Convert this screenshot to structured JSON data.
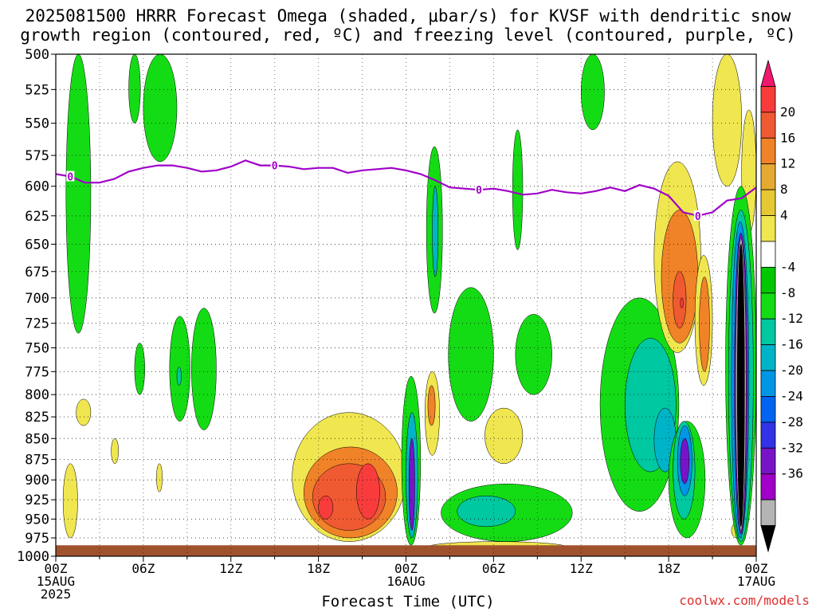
{
  "chart_data": {
    "type": "heatmap",
    "title_line1": "2025081500 HRRR Forecast Omega (shaded, μbar/s) for KVSF with dendritic snow",
    "title_line2": "growth region (contoured, red, ºC) and freezing level (contoured, purple, ºC)",
    "xlabel": "Forecast Time (UTC)",
    "x_ticks": [
      {
        "hour": 0,
        "label": "00Z",
        "sub1": "15AUG",
        "sub2": "2025"
      },
      {
        "hour": 6,
        "label": "06Z",
        "sub1": "",
        "sub2": ""
      },
      {
        "hour": 12,
        "label": "12Z",
        "sub1": "",
        "sub2": ""
      },
      {
        "hour": 18,
        "label": "18Z",
        "sub1": "",
        "sub2": ""
      },
      {
        "hour": 24,
        "label": "00Z",
        "sub1": "16AUG",
        "sub2": ""
      },
      {
        "hour": 30,
        "label": "06Z",
        "sub1": "",
        "sub2": ""
      },
      {
        "hour": 36,
        "label": "12Z",
        "sub1": "",
        "sub2": ""
      },
      {
        "hour": 42,
        "label": "18Z",
        "sub1": "",
        "sub2": ""
      },
      {
        "hour": 48,
        "label": "00Z",
        "sub1": "17AUG",
        "sub2": ""
      }
    ],
    "x_range_hours": [
      0,
      48
    ],
    "y_levels_hpa": [
      500,
      525,
      550,
      575,
      600,
      625,
      650,
      675,
      700,
      725,
      750,
      775,
      800,
      825,
      850,
      875,
      900,
      925,
      950,
      975,
      1000
    ],
    "y_scale": "log-pressure",
    "grid": "dotted",
    "colorbar": {
      "labels": [
        "20",
        "16",
        "12",
        "8",
        "4",
        "-4",
        "-8",
        "-12",
        "-16",
        "-20",
        "-24",
        "-28",
        "-32",
        "-36"
      ],
      "colors": [
        "#f0186c",
        "#f83c3c",
        "#f05a32",
        "#f08228",
        "#e6aa32",
        "#e6c832",
        "#f0e650",
        "#ffffff",
        "#00c800",
        "#14dc14",
        "#00c8a0",
        "#00b4c8",
        "#0096e6",
        "#0064f0",
        "#3232e6",
        "#7814c8",
        "#a000c8",
        "#b4b4b4",
        "#000000"
      ]
    },
    "freezing_level": {
      "label": "0",
      "color": "#a000c8",
      "points": [
        [
          0,
          590
        ],
        [
          1,
          592
        ],
        [
          2,
          597
        ],
        [
          3,
          597
        ],
        [
          4,
          594
        ],
        [
          5,
          588
        ],
        [
          6,
          585
        ],
        [
          7,
          583
        ],
        [
          8,
          583
        ],
        [
          9,
          585
        ],
        [
          10,
          588
        ],
        [
          11,
          587
        ],
        [
          12,
          584
        ],
        [
          13,
          579
        ],
        [
          14,
          583
        ],
        [
          15,
          583
        ],
        [
          16,
          584
        ],
        [
          17,
          586
        ],
        [
          18,
          585
        ],
        [
          19,
          585
        ],
        [
          20,
          589
        ],
        [
          21,
          587
        ],
        [
          22,
          586
        ],
        [
          23,
          585
        ],
        [
          24,
          587
        ],
        [
          25,
          590
        ],
        [
          26,
          595
        ],
        [
          27,
          601
        ],
        [
          28,
          602
        ],
        [
          29,
          603
        ],
        [
          30,
          602
        ],
        [
          31,
          604
        ],
        [
          32,
          607
        ],
        [
          33,
          606
        ],
        [
          34,
          603
        ],
        [
          35,
          605
        ],
        [
          36,
          606
        ],
        [
          37,
          604
        ],
        [
          38,
          601
        ],
        [
          39,
          604
        ],
        [
          40,
          599
        ],
        [
          41,
          602
        ],
        [
          42,
          608
        ],
        [
          43,
          622
        ],
        [
          44,
          625
        ],
        [
          45,
          622
        ],
        [
          46,
          612
        ],
        [
          47,
          610
        ],
        [
          48,
          601
        ]
      ],
      "label_hours": [
        1,
        15,
        29,
        44
      ]
    },
    "omega_regions": [
      {
        "value": -6,
        "hours": [
          0.7,
          2.4
        ],
        "p": [
          500,
          735
        ]
      },
      {
        "value": -6,
        "hours": [
          5.0,
          5.8
        ],
        "p": [
          500,
          550
        ]
      },
      {
        "value": -6,
        "hours": [
          6.0,
          8.3
        ],
        "p": [
          500,
          580
        ]
      },
      {
        "value": -6,
        "hours": [
          5.4,
          6.1
        ],
        "p": [
          745,
          800
        ]
      },
      {
        "value": -6,
        "hours": [
          7.8,
          9.2
        ],
        "p": [
          718,
          830
        ]
      },
      {
        "value": -10,
        "hours": [
          8.3,
          8.6
        ],
        "p": [
          770,
          790
        ]
      },
      {
        "value": -6,
        "hours": [
          9.3,
          11.0
        ],
        "p": [
          710,
          840
        ]
      },
      {
        "value": 6,
        "hours": [
          1.4,
          2.4
        ],
        "p": [
          805,
          835
        ]
      },
      {
        "value": 6,
        "hours": [
          3.8,
          4.3
        ],
        "p": [
          850,
          880
        ]
      },
      {
        "value": 6,
        "hours": [
          6.9,
          7.3
        ],
        "p": [
          880,
          915
        ]
      },
      {
        "value": 6,
        "hours": [
          0.5,
          1.5
        ],
        "p": [
          880,
          975
        ]
      },
      {
        "value": 6,
        "hours": [
          16.2,
          24.0
        ],
        "p": [
          820,
          980
        ]
      },
      {
        "value": 10,
        "hours": [
          17.0,
          23.4
        ],
        "p": [
          860,
          975
        ]
      },
      {
        "value": 14,
        "hours": [
          17.6,
          22.6
        ],
        "p": [
          880,
          965
        ]
      },
      {
        "value": 18,
        "hours": [
          18.0,
          19.0
        ],
        "p": [
          920,
          950
        ]
      },
      {
        "value": 18,
        "hours": [
          20.6,
          22.2
        ],
        "p": [
          880,
          950
        ]
      },
      {
        "value": -6,
        "hours": [
          23.7,
          25.0
        ],
        "p": [
          780,
          985
        ]
      },
      {
        "value": -14,
        "hours": [
          24.0,
          24.8
        ],
        "p": [
          820,
          975
        ]
      },
      {
        "value": -26,
        "hours": [
          24.2,
          24.6
        ],
        "p": [
          850,
          965
        ]
      },
      {
        "value": 6,
        "hours": [
          25.3,
          26.3
        ],
        "p": [
          775,
          870
        ]
      },
      {
        "value": 10,
        "hours": [
          25.5,
          26.0
        ],
        "p": [
          790,
          835
        ]
      },
      {
        "value": -6,
        "hours": [
          25.4,
          26.5
        ],
        "p": [
          568,
          715
        ]
      },
      {
        "value": -14,
        "hours": [
          25.8,
          26.2
        ],
        "p": [
          600,
          680
        ]
      },
      {
        "value": -6,
        "hours": [
          26.9,
          30.0
        ],
        "p": [
          690,
          830
        ]
      },
      {
        "value": -6,
        "hours": [
          26.4,
          35.4
        ],
        "p": [
          905,
          980
        ]
      },
      {
        "value": -10,
        "hours": [
          27.5,
          31.5
        ],
        "p": [
          920,
          960
        ]
      },
      {
        "value": 6,
        "hours": [
          29.4,
          32.0
        ],
        "p": [
          815,
          880
        ]
      },
      {
        "value": -6,
        "hours": [
          31.5,
          34.0
        ],
        "p": [
          716,
          800
        ]
      },
      {
        "value": -6,
        "hours": [
          31.3,
          32.0
        ],
        "p": [
          555,
          655
        ]
      },
      {
        "value": 6,
        "hours": [
          25.5,
          35.0
        ],
        "p": [
          980,
          995
        ]
      },
      {
        "value": -6,
        "hours": [
          36.0,
          37.6
        ],
        "p": [
          500,
          555
        ]
      },
      {
        "value": -6,
        "hours": [
          37.3,
          42.7
        ],
        "p": [
          700,
          940
        ]
      },
      {
        "value": -10,
        "hours": [
          39.0,
          42.5
        ],
        "p": [
          740,
          890
        ]
      },
      {
        "value": -14,
        "hours": [
          41.0,
          42.5
        ],
        "p": [
          815,
          890
        ]
      },
      {
        "value": -6,
        "hours": [
          42.0,
          44.5
        ],
        "p": [
          830,
          975
        ]
      },
      {
        "value": -10,
        "hours": [
          42.3,
          43.8
        ],
        "p": [
          830,
          950
        ]
      },
      {
        "value": -18,
        "hours": [
          42.6,
          43.6
        ],
        "p": [
          835,
          920
        ]
      },
      {
        "value": -26,
        "hours": [
          42.8,
          43.4
        ],
        "p": [
          850,
          905
        ]
      },
      {
        "value": 6,
        "hours": [
          41.0,
          44.2
        ],
        "p": [
          580,
          755
        ]
      },
      {
        "value": 10,
        "hours": [
          41.5,
          44.0
        ],
        "p": [
          620,
          745
        ]
      },
      {
        "value": 14,
        "hours": [
          42.3,
          43.2
        ],
        "p": [
          675,
          730
        ]
      },
      {
        "value": 18,
        "hours": [
          42.8,
          43.0
        ],
        "p": [
          700,
          710
        ]
      },
      {
        "value": 6,
        "hours": [
          43.8,
          45.0
        ],
        "p": [
          660,
          790
        ]
      },
      {
        "value": 10,
        "hours": [
          44.1,
          44.8
        ],
        "p": [
          680,
          775
        ]
      },
      {
        "value": 6,
        "hours": [
          45.0,
          47.0
        ],
        "p": [
          500,
          600
        ]
      },
      {
        "value": 6,
        "hours": [
          47.0,
          48.0
        ],
        "p": [
          540,
          640
        ]
      },
      {
        "value": 6,
        "hours": [
          46.3,
          47.0
        ],
        "p": [
          955,
          975
        ]
      },
      {
        "value": -6,
        "hours": [
          45.9,
          48.0
        ],
        "p": [
          600,
          985
        ]
      },
      {
        "value": -10,
        "hours": [
          46.1,
          47.8
        ],
        "p": [
          620,
          980
        ]
      },
      {
        "value": -18,
        "hours": [
          46.3,
          47.5
        ],
        "p": [
          630,
          975
        ]
      },
      {
        "value": -26,
        "hours": [
          46.5,
          47.4
        ],
        "p": [
          640,
          970
        ]
      },
      {
        "value": -34,
        "hours": [
          46.6,
          47.3
        ],
        "p": [
          645,
          965
        ]
      },
      {
        "value": -40,
        "hours": [
          46.7,
          47.2
        ],
        "p": [
          650,
          960
        ]
      }
    ]
  },
  "credit": "coolwx.com/models"
}
